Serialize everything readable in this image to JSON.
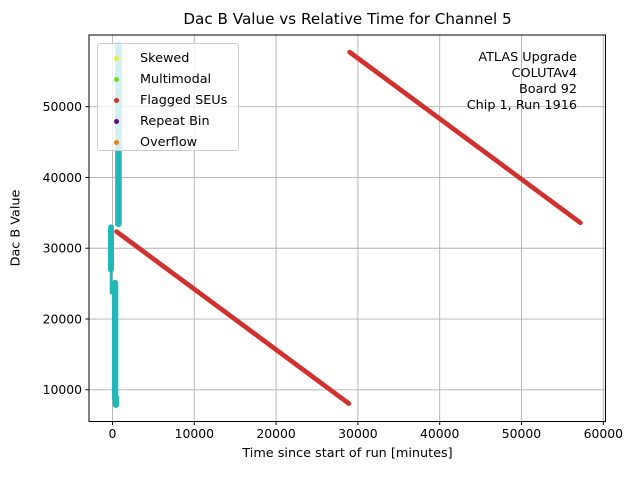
{
  "chart_data": {
    "type": "scatter",
    "title": "Dac B Value vs Relative Time for Channel 5",
    "xlabel": "Time since start of run [minutes]",
    "ylabel": "Dac B Value",
    "xlim": [
      -2870,
      60270
    ],
    "ylim": [
      5520,
      60130
    ],
    "x_ticks": [
      0,
      10000,
      20000,
      30000,
      40000,
      50000,
      60000
    ],
    "y_ticks": [
      10000,
      20000,
      30000,
      40000,
      50000
    ],
    "grid": true,
    "grid_color": "#b0b0b0",
    "frame_color": "#000000",
    "legend": {
      "position": "upper left",
      "entries": [
        {
          "label": "Skewed",
          "color": "#e8e93c",
          "icon": "dot-marker-icon"
        },
        {
          "label": "Multimodal",
          "color": "#6cd820",
          "icon": "dot-marker-icon"
        },
        {
          "label": "Flagged SEUs",
          "color": "#d03028",
          "icon": "dot-marker-icon"
        },
        {
          "label": "Repeat Bin",
          "color": "#5c0a87",
          "icon": "dot-marker-icon"
        },
        {
          "label": "Overflow",
          "color": "#f28018",
          "icon": "dot-marker-icon"
        }
      ]
    },
    "annotation": {
      "lines": [
        "ATLAS Upgrade",
        "COLUTAv4",
        "Board 92",
        "Chip 1, Run 1916"
      ]
    },
    "series": [
      {
        "name": "dac-ramp-band",
        "color": "#22b8ba",
        "style": "vertical-band",
        "segments": [
          {
            "t": 730,
            "v0": 58590,
            "v1": 33450,
            "w": 6.6
          },
          {
            "t": -180,
            "v0": 32950,
            "v1": 27000,
            "w": 6.0
          },
          {
            "t": -180,
            "v0": 27200,
            "v1": 23700,
            "w": 2.6
          },
          {
            "t": 320,
            "v0": 25100,
            "v1": 8850,
            "w": 6.4
          },
          {
            "t": 420,
            "v0": 8900,
            "v1": 7900,
            "w": 6.6
          }
        ]
      },
      {
        "name": "flagged-seu-trend",
        "color": "#d2302a",
        "style": "line",
        "width": 4.7,
        "segments": [
          {
            "t0": 500,
            "v0": 32350,
            "t1": 28900,
            "v1": 8050
          },
          {
            "t0": 29000,
            "v0": 57700,
            "t1": 57200,
            "v1": 33600
          }
        ]
      }
    ]
  }
}
